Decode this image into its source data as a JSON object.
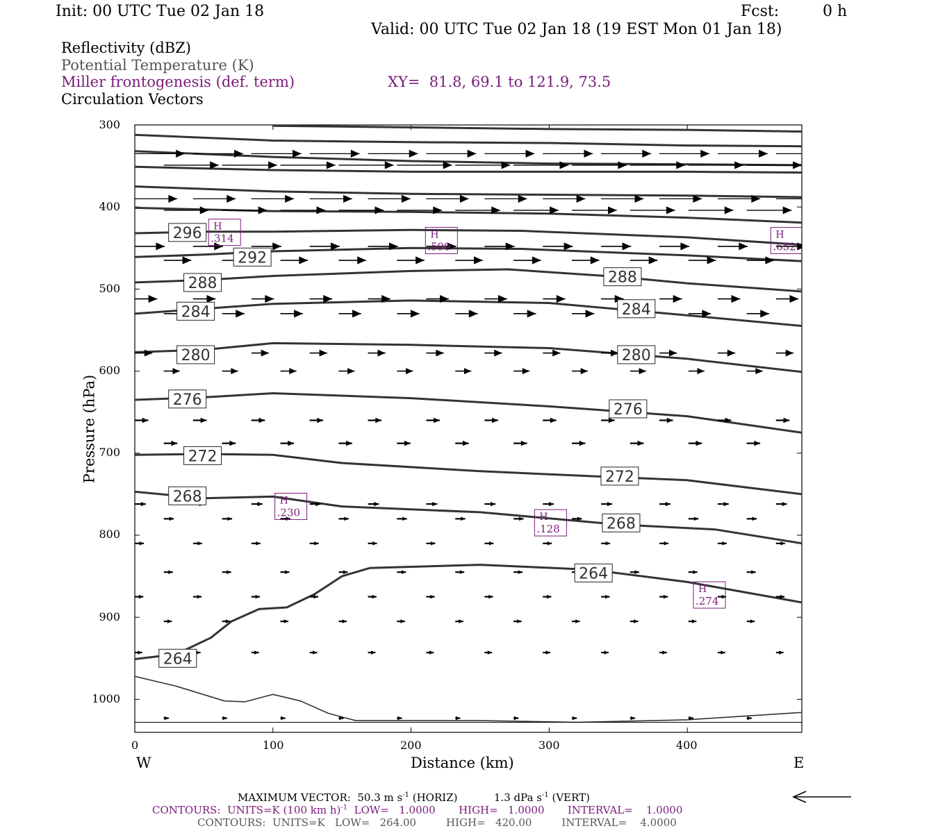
{
  "header": {
    "init": "Init: 00 UTC Tue 02 Jan 18",
    "fcst_label": "Fcst:",
    "fcst_value": "0 h",
    "valid": "Valid: 00 UTC Tue 02 Jan 18 (19 EST Mon 01 Jan 18)"
  },
  "legend": {
    "reflectivity": "Reflectivity (dBZ)",
    "theta": "Potential Temperature (K)",
    "frontogenesis": "Miller frontogenesis (def. term)",
    "xy": "XY=  81.8, 69.1 to 121.9, 73.5",
    "vectors": "Circulation Vectors"
  },
  "colors": {
    "contour": "#333333",
    "frontogenesis": "#7a1a7a",
    "text": "#000000"
  },
  "chart_data": {
    "type": "line",
    "xlabel": "Distance (km)",
    "ylabel": "Pressure (hPa)",
    "xlim": [
      0,
      483
    ],
    "ylim": [
      1040,
      300
    ],
    "x_ticks": [
      0,
      100,
      200,
      300,
      400
    ],
    "y_ticks": [
      300,
      400,
      500,
      600,
      700,
      800,
      900,
      1000
    ],
    "x_end_labels": {
      "left": "W",
      "right": "E"
    },
    "isentropes": [
      {
        "label": "264",
        "label_at": [
          18,
          950
        ],
        "points": [
          [
            0,
            951
          ],
          [
            30,
            945
          ],
          [
            55,
            925
          ],
          [
            70,
            905
          ],
          [
            90,
            890
          ],
          [
            110,
            888
          ],
          [
            130,
            872
          ],
          [
            150,
            850
          ],
          [
            170,
            840
          ],
          [
            250,
            836
          ],
          [
            330,
            842
          ],
          [
            400,
            857
          ],
          [
            483,
            882
          ]
        ]
      },
      {
        "label": "268",
        "label_at": [
          25,
          752
        ],
        "points": [
          [
            0,
            747
          ],
          [
            50,
            755
          ],
          [
            100,
            753
          ],
          [
            150,
            765
          ],
          [
            250,
            772
          ],
          [
            350,
            787
          ],
          [
            420,
            793
          ],
          [
            483,
            810
          ]
        ]
      },
      {
        "label": "272",
        "label_at": [
          36,
          703
        ],
        "points": [
          [
            0,
            702
          ],
          [
            50,
            701
          ],
          [
            100,
            702
          ],
          [
            150,
            712
          ],
          [
            250,
            722
          ],
          [
            330,
            728
          ],
          [
            400,
            733
          ],
          [
            483,
            750
          ]
        ]
      },
      {
        "label": "276",
        "label_at": [
          25,
          634
        ],
        "points": [
          [
            0,
            635
          ],
          [
            50,
            632
          ],
          [
            100,
            627
          ],
          [
            200,
            633
          ],
          [
            300,
            643
          ],
          [
            400,
            655
          ],
          [
            483,
            675
          ]
        ]
      },
      {
        "label": "280",
        "label_at": [
          31,
          580
        ],
        "points": [
          [
            0,
            577
          ],
          [
            50,
            574
          ],
          [
            100,
            566
          ],
          [
            200,
            568
          ],
          [
            300,
            572
          ],
          [
            400,
            585
          ],
          [
            483,
            601
          ]
        ]
      },
      {
        "label": "284",
        "label_at": [
          31,
          527
        ],
        "points": [
          [
            0,
            530
          ],
          [
            50,
            524
          ],
          [
            100,
            518
          ],
          [
            200,
            514
          ],
          [
            300,
            517
          ],
          [
            400,
            532
          ],
          [
            483,
            545
          ]
        ]
      },
      {
        "label": "288",
        "label_at": [
          36,
          492
        ],
        "points": [
          [
            0,
            492
          ],
          [
            50,
            489
          ],
          [
            100,
            484
          ],
          [
            200,
            478
          ],
          [
            270,
            476
          ],
          [
            350,
            485
          ],
          [
            400,
            493
          ],
          [
            483,
            503
          ]
        ]
      },
      {
        "label": "292",
        "label_at": [
          72,
          461
        ],
        "points": [
          [
            0,
            461
          ],
          [
            50,
            458
          ],
          [
            100,
            454
          ],
          [
            200,
            450
          ],
          [
            280,
            451
          ],
          [
            400,
            459
          ],
          [
            483,
            466
          ]
        ]
      },
      {
        "label": "296",
        "label_at": [
          25,
          431
        ],
        "points": [
          [
            0,
            432
          ],
          [
            50,
            430
          ],
          [
            100,
            430
          ],
          [
            200,
            428
          ],
          [
            280,
            429
          ],
          [
            400,
            437
          ],
          [
            483,
            446
          ]
        ]
      },
      {
        "label": "",
        "points": [
          [
            0,
            401
          ],
          [
            100,
            405
          ],
          [
            200,
            406
          ],
          [
            300,
            408
          ],
          [
            400,
            413
          ],
          [
            483,
            419
          ]
        ]
      },
      {
        "label": "",
        "points": [
          [
            0,
            375
          ],
          [
            100,
            381
          ],
          [
            200,
            384
          ],
          [
            300,
            385
          ],
          [
            400,
            386
          ],
          [
            483,
            388
          ]
        ]
      },
      {
        "label": "",
        "points": [
          [
            0,
            351
          ],
          [
            100,
            355
          ],
          [
            200,
            357
          ],
          [
            300,
            357
          ],
          [
            400,
            357
          ],
          [
            483,
            358
          ]
        ]
      },
      {
        "label": "",
        "points": [
          [
            0,
            332
          ],
          [
            100,
            339
          ],
          [
            200,
            344
          ],
          [
            300,
            347
          ],
          [
            400,
            348
          ],
          [
            483,
            349
          ]
        ]
      },
      {
        "label": "",
        "points": [
          [
            0,
            312
          ],
          [
            100,
            319
          ],
          [
            200,
            321
          ],
          [
            300,
            322
          ],
          [
            400,
            325
          ],
          [
            483,
            326
          ]
        ]
      },
      {
        "label": "",
        "points": [
          [
            100,
            301
          ],
          [
            200,
            303
          ],
          [
            300,
            305
          ],
          [
            400,
            306
          ],
          [
            483,
            308
          ]
        ]
      },
      {
        "label": "",
        "points": [
          [
            0,
            972
          ],
          [
            30,
            984
          ],
          [
            65,
            1002
          ],
          [
            80,
            1003
          ],
          [
            100,
            994
          ],
          [
            120,
            1002
          ],
          [
            140,
            1017
          ],
          [
            160,
            1026
          ],
          [
            250,
            1026
          ],
          [
            320,
            1028
          ],
          [
            400,
            1025
          ],
          [
            483,
            1016
          ]
        ]
      }
    ],
    "ground": {
      "points": [
        [
          0,
          1028
        ],
        [
          483,
          1028
        ]
      ]
    },
    "frontogenesis_maxima": [
      {
        "x": 65,
        "p": 430,
        "value": ".314"
      },
      {
        "x": 222,
        "p": 440,
        "value": ".599"
      },
      {
        "x": 472,
        "p": 440,
        "value": ".652"
      },
      {
        "x": 113,
        "p": 764,
        "value": ".230"
      },
      {
        "x": 301,
        "p": 784,
        "value": ".128"
      },
      {
        "x": 416,
        "p": 872,
        "value": ".274"
      }
    ],
    "vector_rows": [
      {
        "p": 335,
        "u": 1.0
      },
      {
        "p": 349,
        "u": 1.1
      },
      {
        "p": 390,
        "u": 0.85
      },
      {
        "p": 404,
        "u": 0.9
      },
      {
        "p": 448,
        "u": 0.6
      },
      {
        "p": 465,
        "u": 0.55
      },
      {
        "p": 512,
        "u": 0.45
      },
      {
        "p": 530,
        "u": 0.45
      },
      {
        "p": 578,
        "u": 0.35
      },
      {
        "p": 600,
        "u": 0.32
      },
      {
        "p": 660,
        "u": 0.27
      },
      {
        "p": 688,
        "u": 0.27
      },
      {
        "p": 762,
        "u": 0.22
      },
      {
        "p": 780,
        "u": 0.2
      },
      {
        "p": 810,
        "u": 0.18
      },
      {
        "p": 845,
        "u": 0.18
      },
      {
        "p": 875,
        "u": 0.17
      },
      {
        "p": 905,
        "u": 0.16
      },
      {
        "p": 943,
        "u": 0.15
      },
      {
        "p": 1023,
        "u": 0.1
      }
    ]
  },
  "footer": {
    "max_vector_prefix": "MAXIMUM VECTOR:  50.3 m s",
    "max_vector_sup": "-1",
    "max_vector_mid": " (HORIZ)           1.3 dPa s",
    "max_vector_sup2": "-1",
    "max_vector_suffix": " (VERT)",
    "contours1_prefix": "CONTOURS:  UNITS=K (100 km h)",
    "contours1_sup": "-1",
    "contours1_suffix": "  LOW=   1.0000       HIGH=   1.0000       INTERVAL=    1.0000",
    "contours2": "CONTOURS:  UNITS=K   LOW=   264.00         HIGH=   420.00         INTERVAL=    4.0000"
  }
}
